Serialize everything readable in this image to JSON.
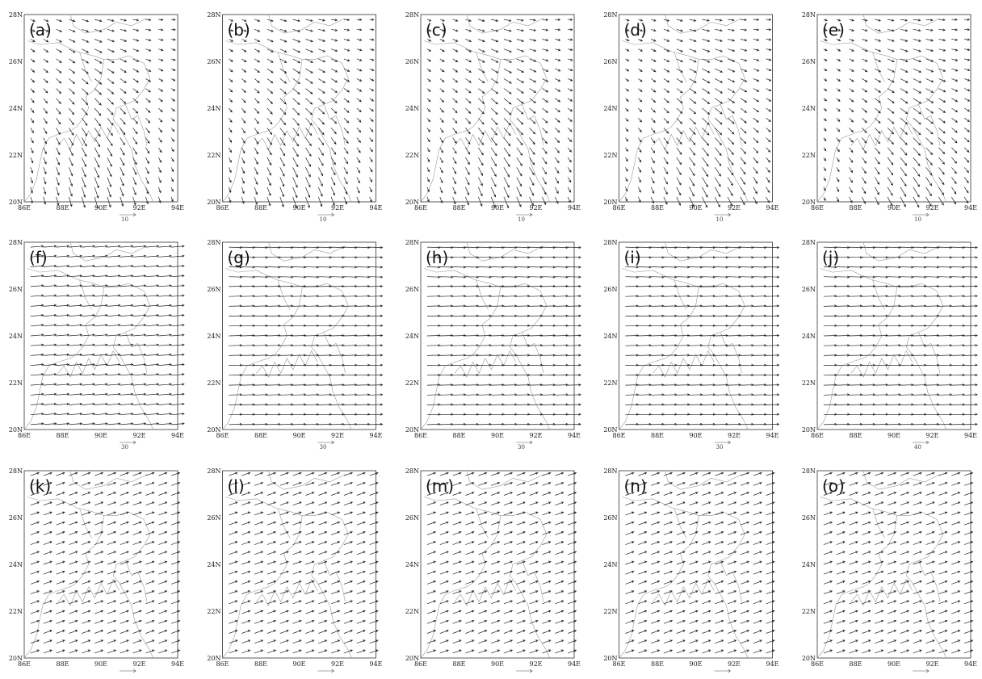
{
  "axes": {
    "y_labels": [
      "28N",
      "26N",
      "24N",
      "22N",
      "20N"
    ],
    "x_labels": [
      "86E",
      "88E",
      "90E",
      "92E",
      "94E"
    ]
  },
  "panels": [
    {
      "label": "(a)",
      "reference": "10"
    },
    {
      "label": "(b)",
      "reference": "10"
    },
    {
      "label": "(c)",
      "reference": "10"
    },
    {
      "label": "(d)",
      "reference": "10"
    },
    {
      "label": "(e)",
      "reference": "10"
    },
    {
      "label": "(f)",
      "reference": "30"
    },
    {
      "label": "(g)",
      "reference": "30"
    },
    {
      "label": "(h)",
      "reference": "30"
    },
    {
      "label": "(i)",
      "reference": "30"
    },
    {
      "label": "(j)",
      "reference": "40"
    },
    {
      "label": "(k)"
    },
    {
      "label": "(l)"
    },
    {
      "label": "(m)"
    },
    {
      "label": "(n)"
    },
    {
      "label": "(o)"
    }
  ]
}
